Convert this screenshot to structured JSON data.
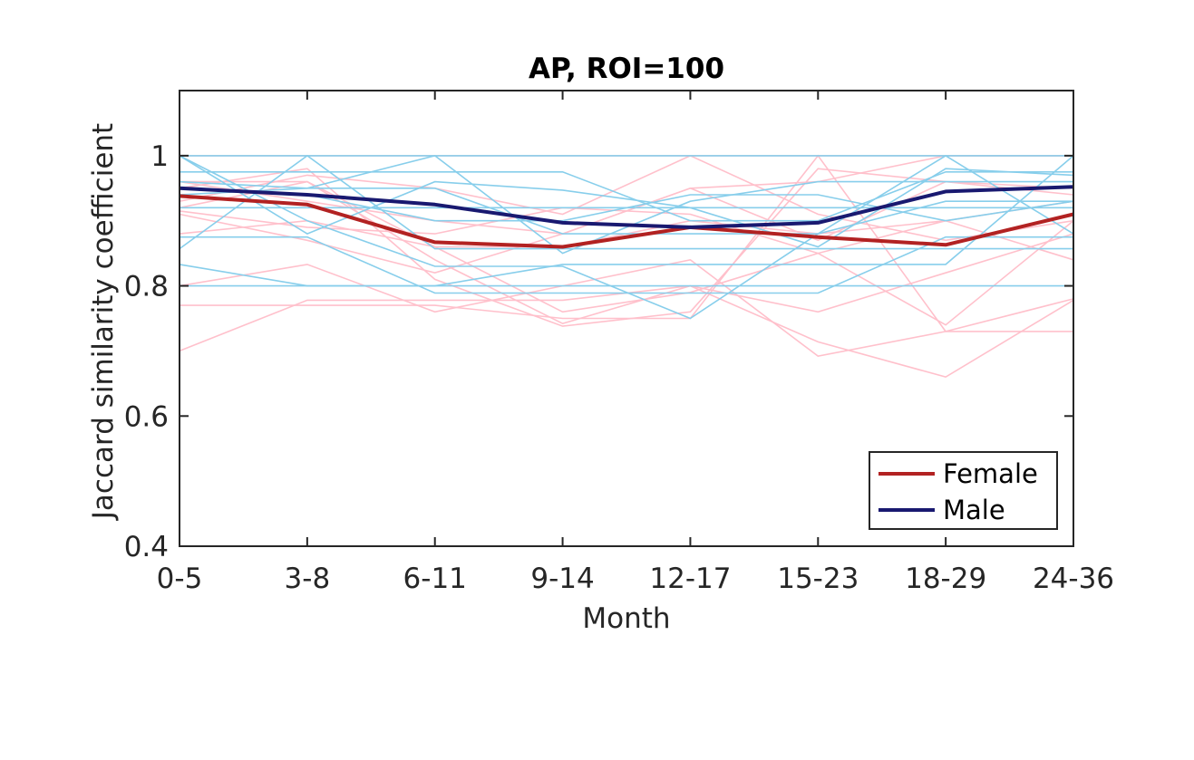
{
  "chart_data": {
    "type": "line",
    "title": "AP, ROI=100",
    "xlabel": "Month",
    "ylabel": "Jaccard similarity coefficient",
    "categories": [
      "0-5",
      "3-8",
      "6-11",
      "9-14",
      "12-17",
      "15-23",
      "18-29",
      "24-36"
    ],
    "ylim": [
      0.4,
      1.1
    ],
    "yticks": [
      0.4,
      0.6,
      0.8,
      1
    ],
    "ytick_labels": [
      "0.4",
      "0.6",
      "0.8",
      "1"
    ],
    "grid": false,
    "legend": {
      "placement": "bottom-right",
      "entries": [
        "Female",
        "Male"
      ]
    },
    "colors": {
      "female_mean": "#b22222",
      "male_mean": "#191970",
      "female_individual": "#ffc0cb",
      "male_individual": "#87ceeb",
      "axis": "#262626"
    },
    "series": [
      {
        "name": "Female",
        "group": "female",
        "kind": "mean",
        "values": [
          0.938,
          0.925,
          0.867,
          0.86,
          0.89,
          0.875,
          0.863,
          0.91
        ]
      },
      {
        "name": "Male",
        "group": "male",
        "kind": "mean",
        "values": [
          0.95,
          0.94,
          0.925,
          0.897,
          0.89,
          0.897,
          0.945,
          0.952
        ]
      },
      {
        "group": "female",
        "kind": "individual",
        "values": [
          1.0,
          1.0,
          1.0,
          1.0,
          1.0,
          1.0,
          1.0,
          1.0
        ]
      },
      {
        "group": "female",
        "kind": "individual",
        "values": [
          0.7,
          0.778,
          0.778,
          0.778,
          0.8,
          0.714,
          0.66,
          0.778
        ]
      },
      {
        "group": "female",
        "kind": "individual",
        "values": [
          0.77,
          0.77,
          0.77,
          0.75,
          0.75,
          1.0,
          0.73,
          0.73
        ]
      },
      {
        "group": "female",
        "kind": "individual",
        "values": [
          0.91,
          0.87,
          0.82,
          0.88,
          0.95,
          0.96,
          1.0,
          1.0
        ]
      },
      {
        "group": "female",
        "kind": "individual",
        "values": [
          0.8,
          0.833,
          0.76,
          0.8,
          0.84,
          0.692,
          0.73,
          0.78
        ]
      },
      {
        "group": "female",
        "kind": "individual",
        "values": [
          0.92,
          0.96,
          0.84,
          0.742,
          0.8,
          0.76,
          0.82,
          0.88
        ]
      },
      {
        "group": "female",
        "kind": "individual",
        "values": [
          0.96,
          0.96,
          0.86,
          0.86,
          0.9,
          0.88,
          0.9,
          0.93
        ]
      },
      {
        "group": "female",
        "kind": "individual",
        "values": [
          0.88,
          0.9,
          0.86,
          0.76,
          0.79,
          0.85,
          0.74,
          0.9
        ]
      },
      {
        "group": "female",
        "kind": "individual",
        "values": [
          0.95,
          0.98,
          0.81,
          0.738,
          0.76,
          0.98,
          0.96,
          0.95
        ]
      },
      {
        "group": "female",
        "kind": "individual",
        "values": [
          0.915,
          0.89,
          0.88,
          0.92,
          0.91,
          0.85,
          0.9,
          0.84
        ]
      },
      {
        "group": "female",
        "kind": "individual",
        "values": [
          0.96,
          0.93,
          0.9,
          0.88,
          0.95,
          0.87,
          0.96,
          0.94
        ]
      },
      {
        "group": "female",
        "kind": "individual",
        "values": [
          0.93,
          0.97,
          0.95,
          0.91,
          1.0,
          0.91,
          0.87,
          0.9
        ]
      },
      {
        "group": "male",
        "kind": "individual",
        "values": [
          1.0,
          1.0,
          1.0,
          1.0,
          1.0,
          1.0,
          1.0,
          1.0
        ]
      },
      {
        "group": "male",
        "kind": "individual",
        "values": [
          0.8,
          0.8,
          0.8,
          0.8,
          0.8,
          0.8,
          0.8,
          0.8
        ]
      },
      {
        "group": "male",
        "kind": "individual",
        "values": [
          0.875,
          0.875,
          0.789,
          0.789,
          0.789,
          0.789,
          0.875,
          0.875
        ]
      },
      {
        "group": "male",
        "kind": "individual",
        "values": [
          0.833,
          0.8,
          0.8,
          0.833,
          0.833,
          0.833,
          0.833,
          1.0
        ]
      },
      {
        "group": "male",
        "kind": "individual",
        "values": [
          0.975,
          0.975,
          0.975,
          0.975,
          0.9,
          0.9,
          0.975,
          0.975
        ]
      },
      {
        "group": "male",
        "kind": "individual",
        "values": [
          0.92,
          0.92,
          0.92,
          0.92,
          0.92,
          0.92,
          0.92,
          0.92
        ]
      },
      {
        "group": "male",
        "kind": "individual",
        "values": [
          0.857,
          1.0,
          0.857,
          0.857,
          0.857,
          0.857,
          0.857,
          0.857
        ]
      },
      {
        "group": "male",
        "kind": "individual",
        "values": [
          1.0,
          0.9,
          0.83,
          0.83,
          0.75,
          0.88,
          1.0,
          0.88
        ]
      },
      {
        "group": "male",
        "kind": "individual",
        "values": [
          0.96,
          0.95,
          1.0,
          0.85,
          0.93,
          0.96,
          0.96,
          0.96
        ]
      },
      {
        "group": "male",
        "kind": "individual",
        "values": [
          0.94,
          0.95,
          0.95,
          0.88,
          0.88,
          0.88,
          0.93,
          0.93
        ]
      },
      {
        "group": "male",
        "kind": "individual",
        "values": [
          1.0,
          0.88,
          0.96,
          0.947,
          0.92,
          0.86,
          0.98,
          0.97
        ]
      },
      {
        "group": "male",
        "kind": "individual",
        "values": [
          0.95,
          0.94,
          0.9,
          0.9,
          0.94,
          0.94,
          0.9,
          0.93
        ]
      }
    ]
  }
}
